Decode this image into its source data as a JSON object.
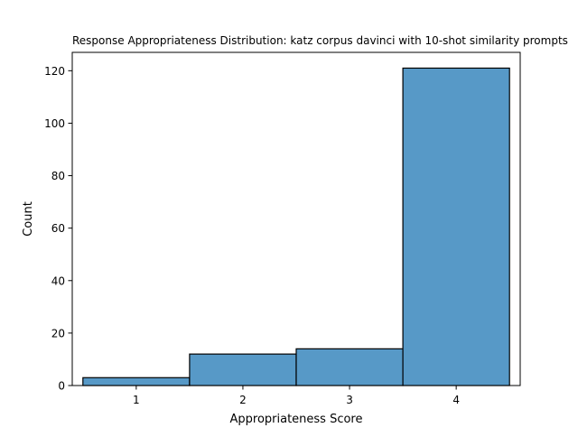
{
  "chart_data": {
    "type": "bar",
    "title": "Response Appropriateness Distribution: katz corpus davinci with 10-shot similarity prompts",
    "xlabel": "Appropriateness Score",
    "ylabel": "Count",
    "categories": [
      "1",
      "2",
      "3",
      "4"
    ],
    "x": [
      1,
      2,
      3,
      4
    ],
    "values": [
      3,
      12,
      14,
      121
    ],
    "xlim": [
      0.4,
      4.6
    ],
    "ylim": [
      0,
      127
    ],
    "xticks": [
      1,
      2,
      3,
      4
    ],
    "yticks": [
      0,
      20,
      40,
      60,
      80,
      100,
      120
    ],
    "grid": false,
    "bar_color": "#5799c7",
    "edge_color": "#000000"
  }
}
